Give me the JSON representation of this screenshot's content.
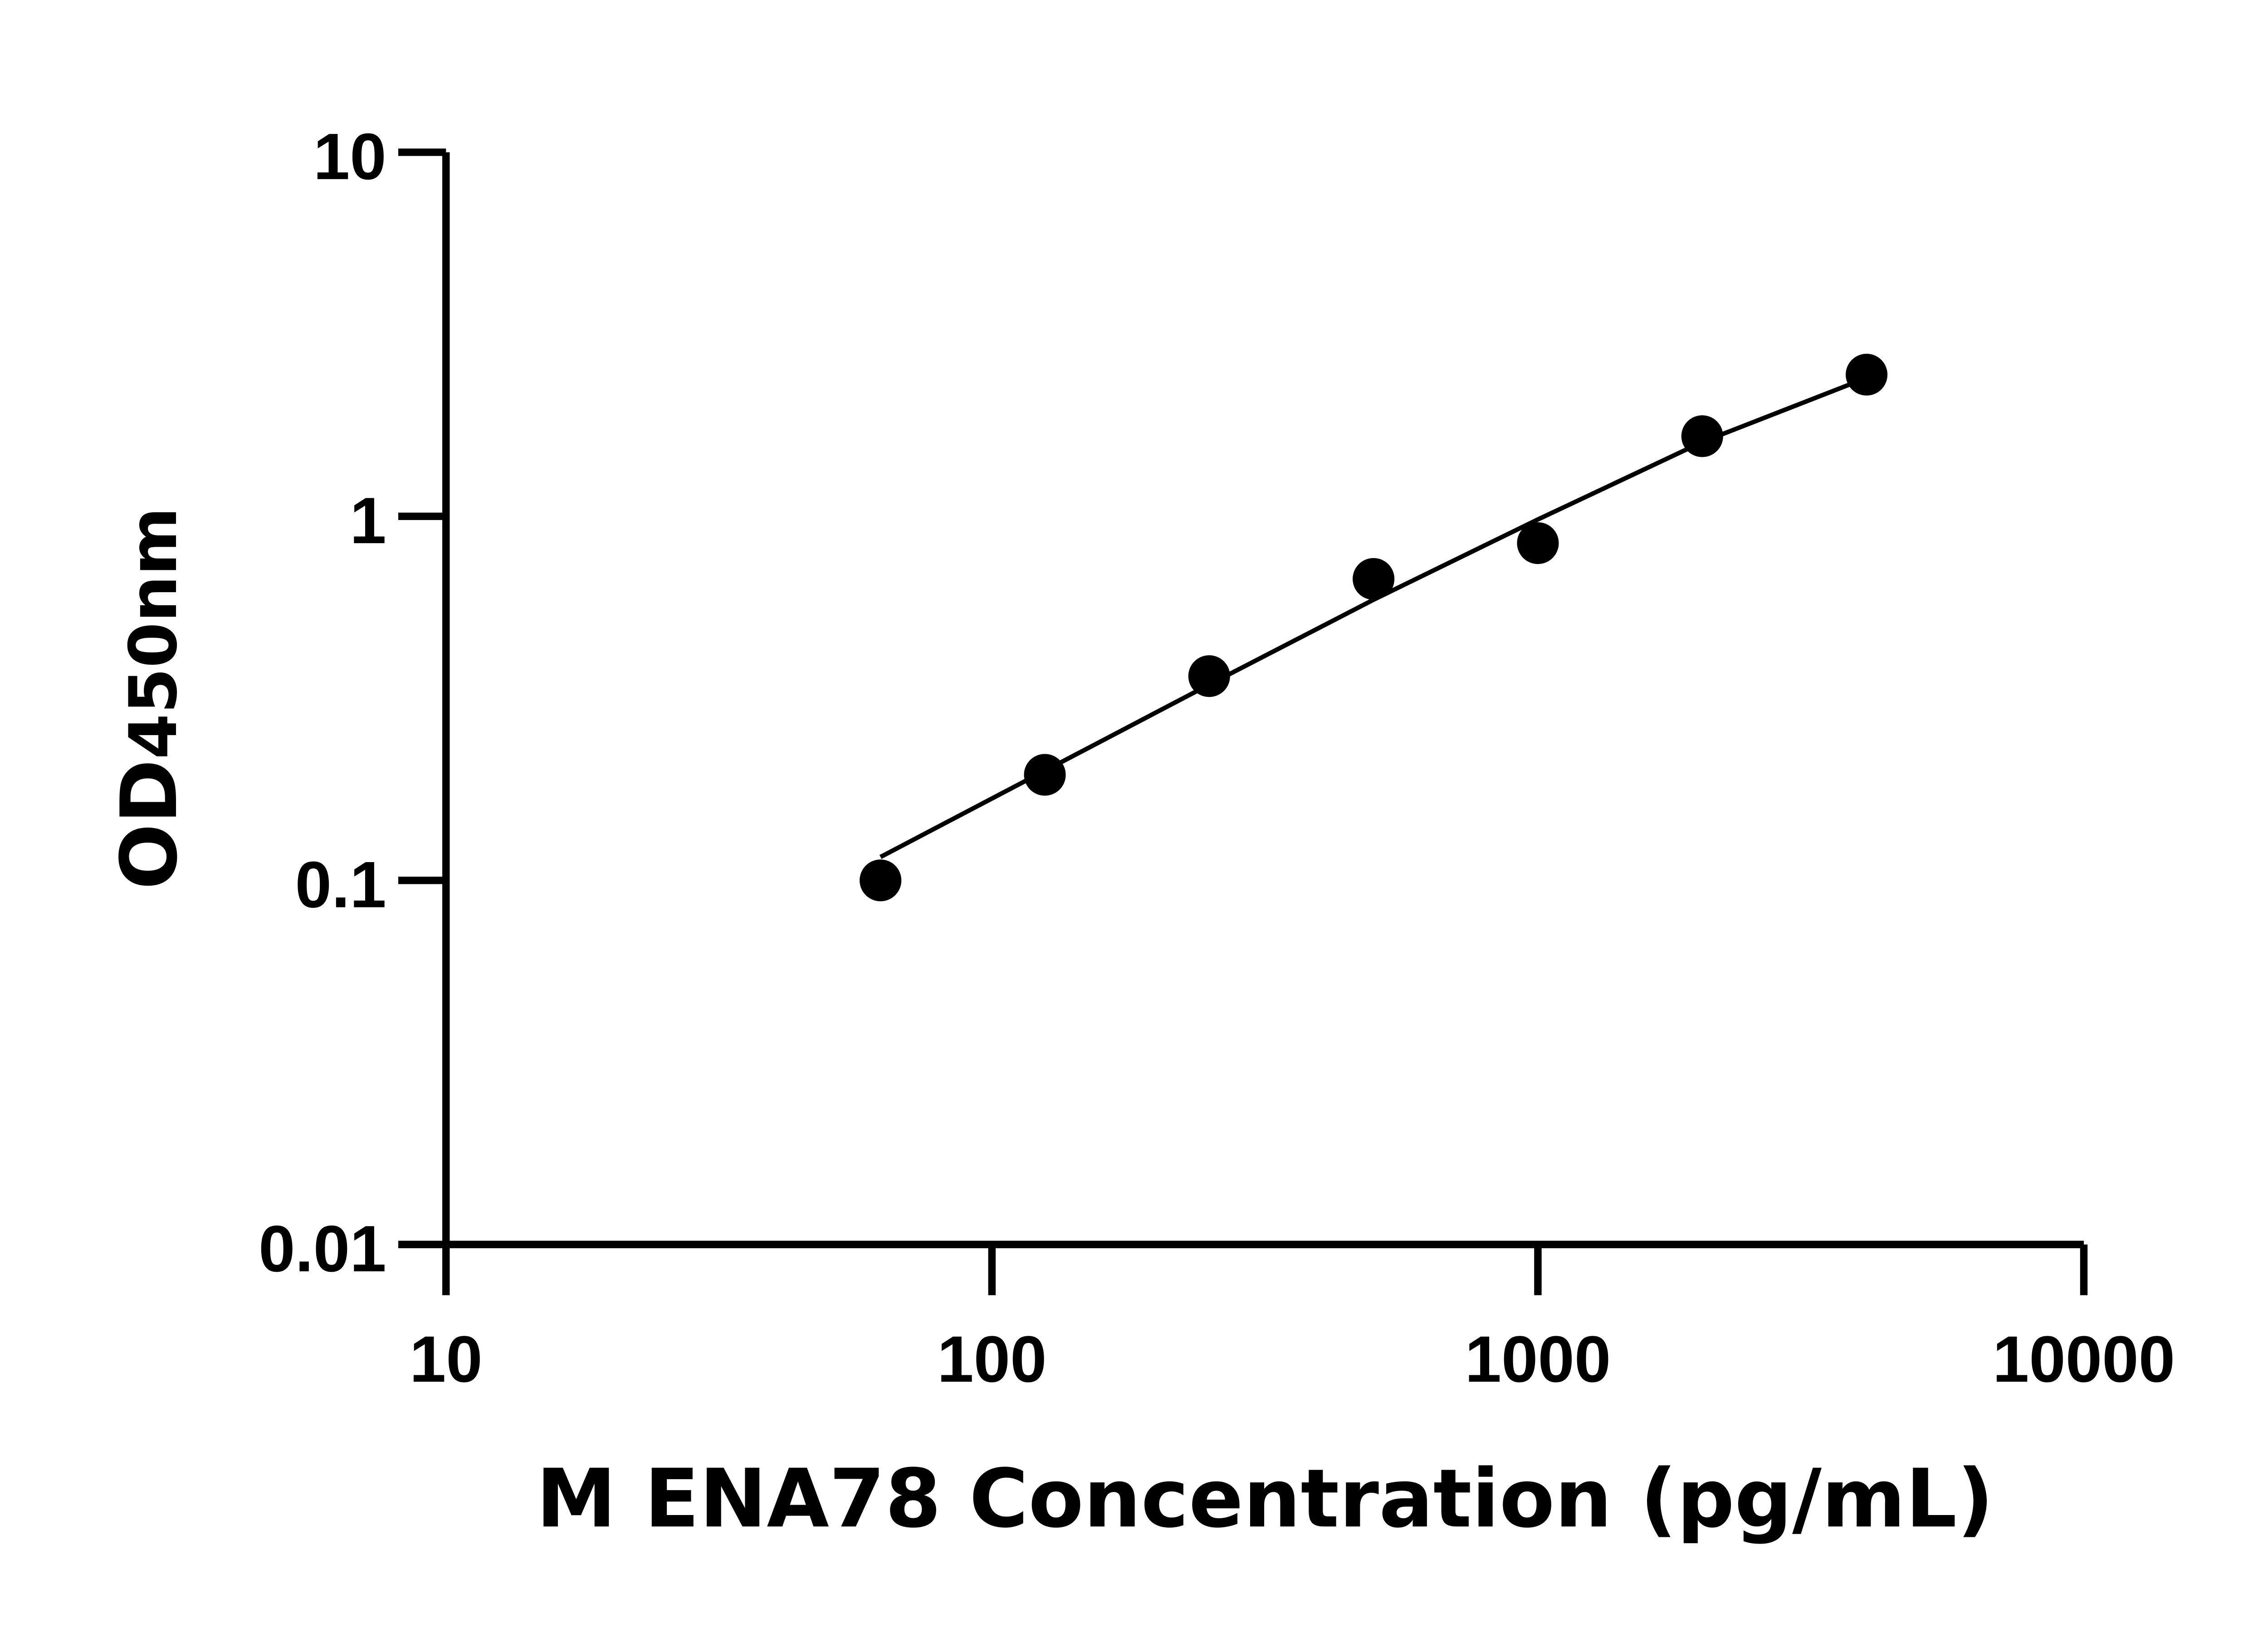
{
  "chart_data": {
    "type": "scatter",
    "title": "",
    "xlabel": "M ENA78 Concentration (pg/mL)",
    "ylabel": {
      "main": "OD",
      "sub": "450nm"
    },
    "xscale": "log",
    "yscale": "log",
    "xlim": [
      10,
      10000
    ],
    "ylim": [
      0.01,
      10
    ],
    "xticks": [
      "10",
      "100",
      "1000",
      "10000"
    ],
    "yticks": [
      "0.01",
      "0.1",
      "1",
      "10"
    ],
    "grid": false,
    "legend": "none",
    "color": "#000000",
    "points": {
      "x": [
        62.5,
        125,
        250,
        500,
        1000,
        2000,
        4000
      ],
      "y": [
        0.1,
        0.195,
        0.364,
        0.673,
        0.844,
        1.66,
        2.45
      ]
    },
    "fit_curve": {
      "x": [
        62.5,
        125,
        250,
        500,
        1000,
        2000,
        4000
      ],
      "y": [
        0.116,
        0.2,
        0.345,
        0.59,
        0.98,
        1.6,
        2.4
      ]
    }
  }
}
